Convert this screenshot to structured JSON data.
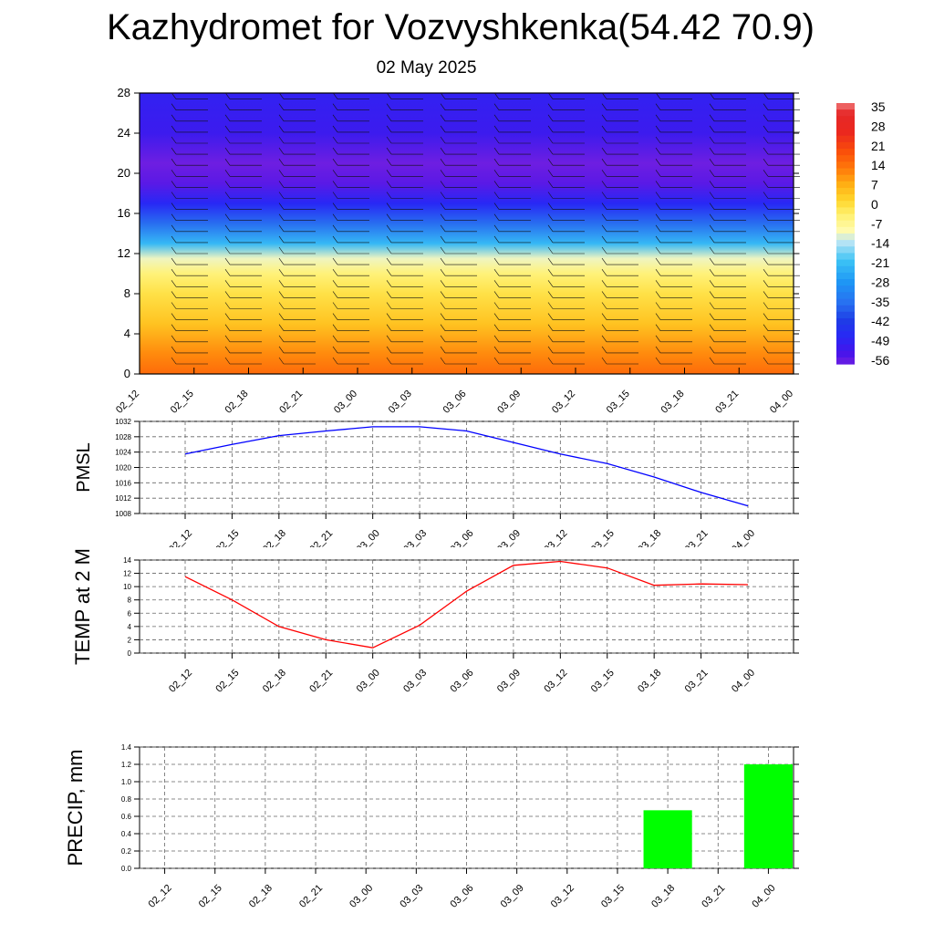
{
  "title": "Kazhydromet for Vozvyshkenka(54.42 70.9)",
  "subtitle": "02 May 2025",
  "colors": {
    "pmsl_line": "#0000ff",
    "temp_line": "#ff0000",
    "precip_bar": "#00ff00",
    "grid": "#555555"
  },
  "chart_data": [
    {
      "type": "heatmap",
      "name_hint": "vertical temperature cross-section with wind barbs",
      "x_ticks": [
        "02_12",
        "02_15",
        "02_18",
        "02_21",
        "03_00",
        "03_03",
        "03_06",
        "03_09",
        "03_12",
        "03_15",
        "03_18",
        "03_21",
        "04_00"
      ],
      "y_ticks": [
        0,
        4,
        8,
        12,
        16,
        20,
        24,
        28
      ],
      "ylim": [
        0,
        28
      ],
      "colorbar_labels": [
        "35",
        "28",
        "21",
        "14",
        "7",
        "0",
        "-7",
        "-14",
        "-21",
        "-28",
        "-35",
        "-42",
        "-49",
        "-56"
      ],
      "temperature_profile": [
        {
          "level": 0,
          "value": 14
        },
        {
          "level": 2,
          "value": 10
        },
        {
          "level": 5,
          "value": 3
        },
        {
          "level": 8,
          "value": -2
        },
        {
          "level": 10,
          "value": -6
        },
        {
          "level": 11.5,
          "value": -12
        },
        {
          "level": 13,
          "value": -24
        },
        {
          "level": 15,
          "value": -38
        },
        {
          "level": 17,
          "value": -50
        },
        {
          "level": 19,
          "value": -58
        },
        {
          "level": 21,
          "value": -60
        },
        {
          "level": 24,
          "value": -54
        },
        {
          "level": 28,
          "value": -52
        }
      ]
    },
    {
      "type": "line",
      "ylabel": "PMSL",
      "x": [
        "02_12",
        "02_15",
        "02_18",
        "02_21",
        "03_00",
        "03_03",
        "03_06",
        "03_09",
        "03_12",
        "03_15",
        "03_18",
        "03_21",
        "04_00"
      ],
      "values": [
        1023.5,
        1026,
        1028.3,
        1029.5,
        1030.6,
        1030.6,
        1029.5,
        1026.5,
        1023.5,
        1021,
        1017.5,
        1013.5,
        1010
      ],
      "y_ticks": [
        1008,
        1012,
        1016,
        1020,
        1024,
        1028,
        1032
      ],
      "ylim": [
        1008,
        1032
      ],
      "grid": true
    },
    {
      "type": "line",
      "ylabel": "TEMP at 2 M",
      "x": [
        "02_12",
        "02_15",
        "02_18",
        "02_21",
        "03_00",
        "03_03",
        "03_06",
        "03_09",
        "03_12",
        "03_15",
        "03_18",
        "03_21",
        "04_00"
      ],
      "values": [
        11.5,
        8,
        4,
        2,
        0.8,
        4.2,
        9.3,
        13.2,
        13.8,
        12.8,
        10.2,
        10.4,
        10.3
      ],
      "y_ticks": [
        0,
        2,
        4,
        6,
        8,
        10,
        12,
        14
      ],
      "ylim": [
        0,
        14
      ],
      "grid": true
    },
    {
      "type": "bar",
      "ylabel": "PRECIP, mm",
      "categories": [
        "02_12",
        "02_15",
        "02_18",
        "02_21",
        "03_00",
        "03_03",
        "03_06",
        "03_09",
        "03_12",
        "03_15",
        "03_18",
        "03_21",
        "04_00"
      ],
      "values": [
        0,
        0,
        0,
        0,
        0,
        0,
        0,
        0,
        0,
        0,
        0.67,
        0,
        1.2
      ],
      "y_ticks": [
        "0.0",
        "0.2",
        "0.4",
        "0.6",
        "0.8",
        "1.0",
        "1.2",
        "1.4"
      ],
      "ylim": [
        0,
        1.4
      ],
      "grid": true
    }
  ]
}
